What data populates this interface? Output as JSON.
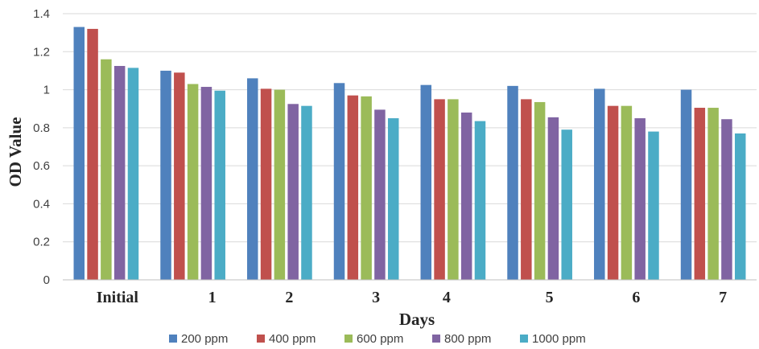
{
  "chart_data": {
    "type": "bar",
    "title": "",
    "xlabel": "Days",
    "ylabel": "OD Value",
    "categories": [
      "Initial",
      "1",
      "2",
      "3",
      "4",
      "5",
      "6",
      "7"
    ],
    "ylim": [
      0,
      1.4
    ],
    "yticks": [
      "0",
      "0.2",
      "0.4",
      "0.6",
      "0.8",
      "1",
      "1.2",
      "1.4"
    ],
    "grid": "horizontal",
    "legend_position": "bottom",
    "series": [
      {
        "name": "200 ppm",
        "color": "#4f81bd",
        "values": [
          1.33,
          1.1,
          1.06,
          1.035,
          1.025,
          1.02,
          1.005,
          1.0
        ]
      },
      {
        "name": "400 ppm",
        "color": "#c0504d",
        "values": [
          1.32,
          1.09,
          1.005,
          0.97,
          0.95,
          0.95,
          0.915,
          0.905
        ]
      },
      {
        "name": "600 ppm",
        "color": "#9bbb59",
        "values": [
          1.16,
          1.03,
          1.0,
          0.965,
          0.95,
          0.935,
          0.915,
          0.905
        ]
      },
      {
        "name": "800 ppm",
        "color": "#8064a2",
        "values": [
          1.125,
          1.015,
          0.925,
          0.895,
          0.88,
          0.855,
          0.85,
          0.845
        ]
      },
      {
        "name": "1000 ppm",
        "color": "#4bacc6",
        "values": [
          1.115,
          0.995,
          0.915,
          0.85,
          0.835,
          0.79,
          0.78,
          0.77
        ]
      }
    ]
  }
}
